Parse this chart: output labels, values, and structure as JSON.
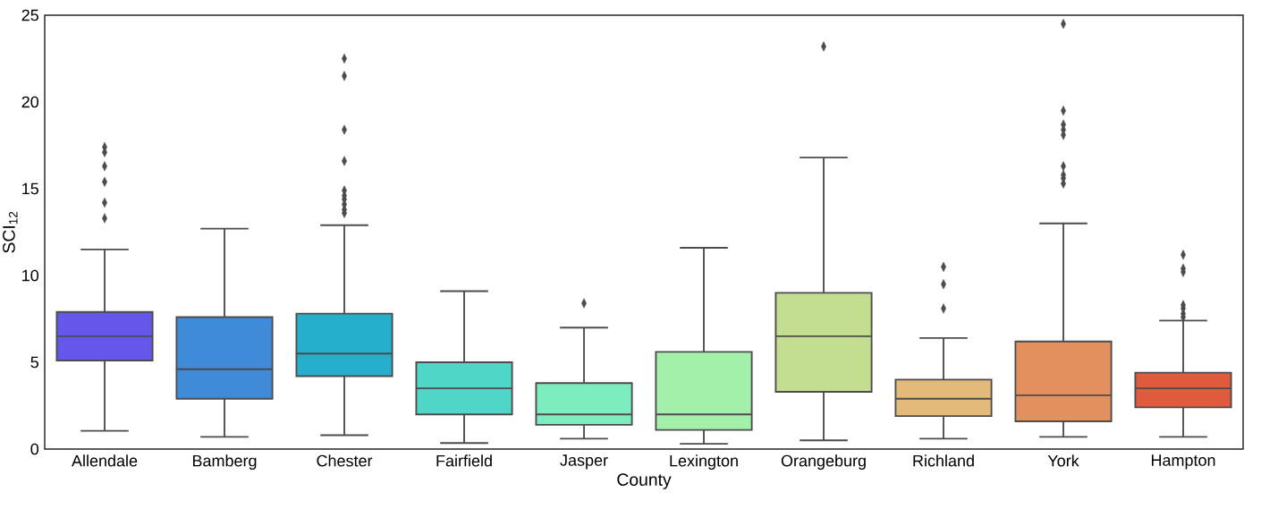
{
  "chart_data": {
    "type": "box",
    "xlabel": "County",
    "ylabel": "SCI$_{12}$",
    "categories": [
      "Allendale",
      "Bamberg",
      "Chester",
      "Fairfield",
      "Jasper",
      "Lexington",
      "Orangeburg",
      "Richland",
      "York",
      "Hampton"
    ],
    "colors": [
      "#6457ea",
      "#3f8ad9",
      "#25afcc",
      "#50d6c6",
      "#7decbf",
      "#a3f0ab",
      "#c3dd91",
      "#e3ba79",
      "#e48f5e",
      "#e05a3d"
    ],
    "boxes": [
      {
        "low": 1.05,
        "q1": 5.1,
        "median": 6.5,
        "q3": 7.9,
        "high": 11.5,
        "outliers": [
          13.3,
          14.2,
          15.4,
          16.3,
          17.1,
          17.4
        ]
      },
      {
        "low": 0.7,
        "q1": 2.9,
        "median": 4.6,
        "q3": 7.6,
        "high": 12.7
      },
      {
        "low": 0.8,
        "q1": 4.2,
        "median": 5.5,
        "q3": 7.8,
        "high": 12.9,
        "outliers": [
          13.6,
          13.8,
          14.1,
          14.4,
          14.6,
          14.9,
          16.6,
          18.4,
          21.5,
          22.5
        ]
      },
      {
        "low": 0.35,
        "q1": 2.0,
        "median": 3.5,
        "q3": 5.0,
        "high": 9.1
      },
      {
        "low": 0.6,
        "q1": 1.4,
        "median": 2.0,
        "q3": 3.8,
        "high": 7.0,
        "outliers": [
          8.4
        ]
      },
      {
        "low": 0.3,
        "q1": 1.1,
        "median": 2.0,
        "q3": 5.6,
        "high": 11.6
      },
      {
        "low": 0.5,
        "q1": 3.3,
        "median": 6.5,
        "q3": 9.0,
        "high": 16.8,
        "outliers": [
          23.2
        ]
      },
      {
        "low": 0.6,
        "q1": 1.9,
        "median": 2.9,
        "q3": 4.0,
        "high": 6.4,
        "outliers": [
          8.1,
          9.5,
          10.5
        ]
      },
      {
        "low": 0.7,
        "q1": 1.6,
        "median": 3.1,
        "q3": 6.2,
        "high": 13.0,
        "outliers": [
          15.3,
          15.6,
          15.8,
          16.3,
          18.1,
          18.4,
          18.7,
          19.5,
          24.5
        ]
      },
      {
        "low": 0.7,
        "q1": 2.4,
        "median": 3.5,
        "q3": 4.4,
        "high": 7.4,
        "outliers": [
          7.6,
          7.8,
          8.1,
          8.3,
          10.2,
          10.4,
          11.2
        ]
      }
    ],
    "ylim": [
      0,
      25
    ],
    "yticks": [
      0,
      5,
      10,
      15,
      20,
      25
    ],
    "grid": false
  }
}
